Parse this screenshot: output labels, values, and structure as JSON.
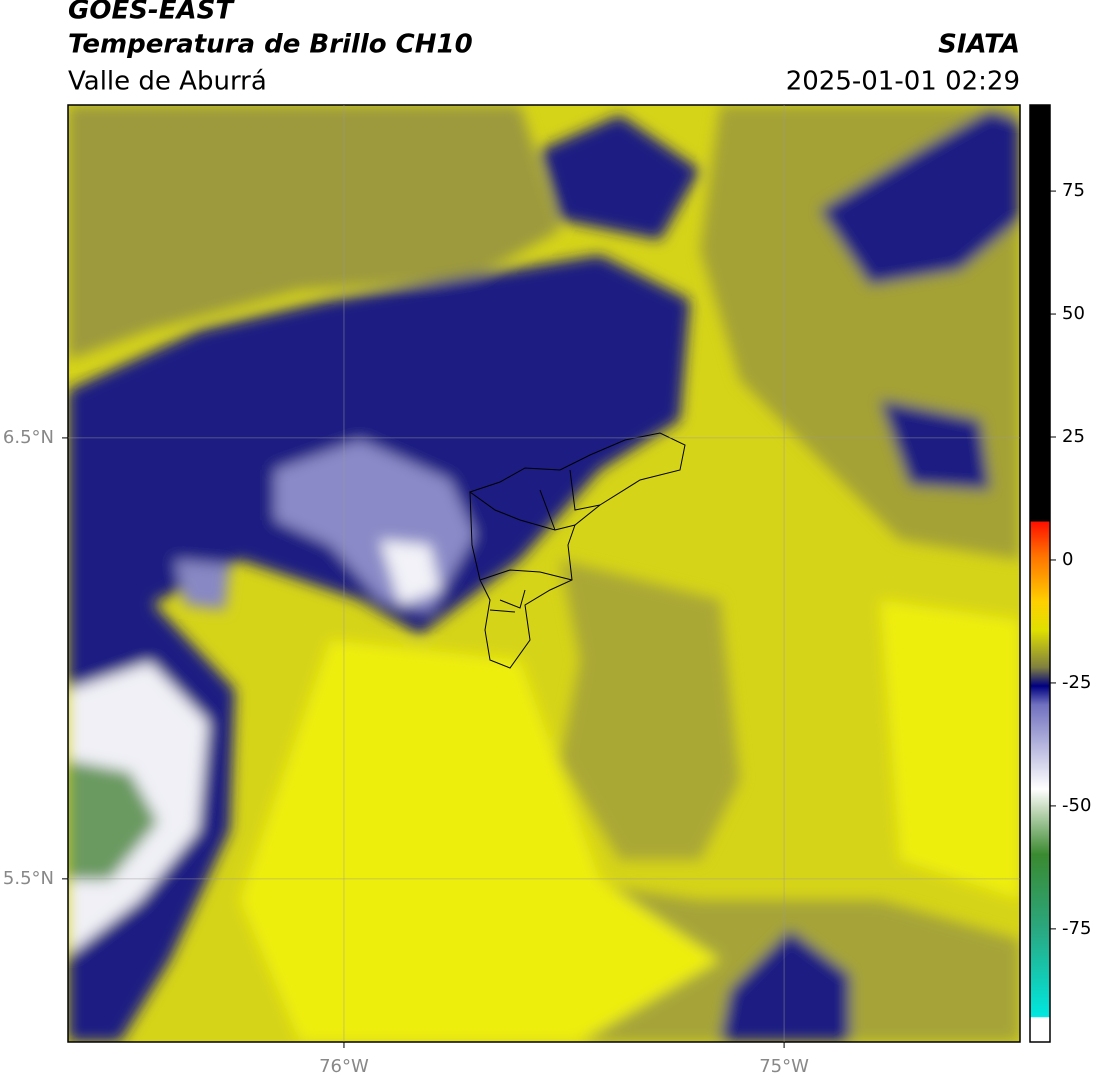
{
  "header": {
    "title": "GOES-EAST",
    "subtitle": "Temperatura de Brillo CH10",
    "region": "Valle de Aburrá",
    "source": "SIATA",
    "datetime": "2025-01-01 02:29"
  },
  "map": {
    "xlim": [
      -76.627,
      -74.464
    ],
    "ylim": [
      5.13,
      7.255
    ],
    "xticks": [
      {
        "value": -76,
        "label": "76°W"
      },
      {
        "value": -75,
        "label": "75°W"
      }
    ],
    "yticks": [
      {
        "value": 6.5,
        "label": "6.5°N"
      },
      {
        "value": 5.5,
        "label": "5.5°N"
      }
    ],
    "grid": true
  },
  "colorbar": {
    "lim": [
      -98,
      92.5
    ],
    "ticks": [
      75,
      50,
      25,
      0,
      -25,
      -50,
      -75
    ]
  }
}
